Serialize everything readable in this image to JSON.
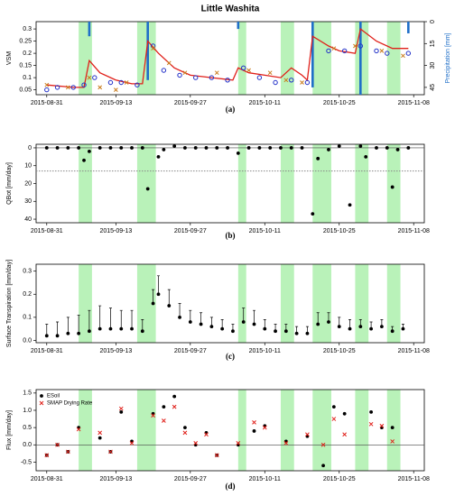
{
  "title": "Little Washita",
  "rain_periods": [
    [
      "2015-09-06",
      "2015-09-08"
    ],
    [
      "2015-09-17",
      "2015-09-20"
    ],
    [
      "2015-10-06",
      "2015-10-07"
    ],
    [
      "2015-10-14",
      "2015-10-16"
    ],
    [
      "2015-10-20",
      "2015-10-23"
    ],
    [
      "2015-10-28",
      "2015-10-30"
    ],
    [
      "2015-11-03",
      "2015-11-05"
    ]
  ],
  "chart_data": [
    {
      "type": "line",
      "caption": "(a)",
      "ylabel": "VSM",
      "y2label": "Precipitation [mm]",
      "xlim": [
        "2015-08-29",
        "2015-11-10"
      ],
      "xticks": [
        "2015-08-31",
        "2015-09-13",
        "2015-09-27",
        "2015-10-11",
        "2015-10-25",
        "2015-11-08"
      ],
      "ylim": [
        0.03,
        0.33
      ],
      "yticks": [
        0.05,
        0.1,
        0.15,
        0.2,
        0.25,
        0.3
      ],
      "y2lim": [
        0,
        50
      ],
      "y2ticks": [
        0,
        15,
        30,
        45
      ],
      "series": [
        {
          "kind": "bar",
          "axis": "y2",
          "color": "#1f6fc8",
          "x": [
            "2015-09-08",
            "2015-09-19",
            "2015-10-06",
            "2015-10-20",
            "2015-10-29",
            "2015-11-07"
          ],
          "values": [
            10,
            40,
            5,
            45,
            50,
            8
          ]
        },
        {
          "kind": "line",
          "color": "#e0201a",
          "x": [
            "2015-08-31",
            "2015-09-05",
            "2015-09-07",
            "2015-09-08",
            "2015-09-10",
            "2015-09-13",
            "2015-09-16",
            "2015-09-18",
            "2015-09-19",
            "2015-09-21",
            "2015-09-24",
            "2015-09-27",
            "2015-10-01",
            "2015-10-05",
            "2015-10-06",
            "2015-10-08",
            "2015-10-11",
            "2015-10-14",
            "2015-10-16",
            "2015-10-18",
            "2015-10-19",
            "2015-10-20",
            "2015-10-23",
            "2015-10-25",
            "2015-10-28",
            "2015-10-29",
            "2015-11-01",
            "2015-11-04",
            "2015-11-07"
          ],
          "values": [
            0.07,
            0.06,
            0.06,
            0.17,
            0.12,
            0.09,
            0.075,
            0.075,
            0.25,
            0.2,
            0.14,
            0.11,
            0.1,
            0.09,
            0.14,
            0.12,
            0.11,
            0.1,
            0.14,
            0.11,
            0.09,
            0.27,
            0.23,
            0.21,
            0.2,
            0.3,
            0.25,
            0.22,
            0.22
          ]
        },
        {
          "kind": "circle",
          "color": "#2230c8",
          "x": [
            "2015-08-31",
            "2015-09-02",
            "2015-09-05",
            "2015-09-07",
            "2015-09-09",
            "2015-09-12",
            "2015-09-14",
            "2015-09-17",
            "2015-09-20",
            "2015-09-22",
            "2015-09-25",
            "2015-09-28",
            "2015-10-01",
            "2015-10-04",
            "2015-10-07",
            "2015-10-10",
            "2015-10-13",
            "2015-10-16",
            "2015-10-19",
            "2015-10-23",
            "2015-10-26",
            "2015-10-29",
            "2015-11-01",
            "2015-11-03",
            "2015-11-07"
          ],
          "values": [
            0.05,
            0.06,
            0.06,
            0.07,
            0.1,
            0.08,
            0.08,
            0.07,
            0.23,
            0.13,
            0.11,
            0.1,
            0.1,
            0.09,
            0.14,
            0.1,
            0.08,
            0.09,
            0.08,
            0.21,
            0.21,
            0.23,
            0.21,
            0.2,
            0.2
          ]
        },
        {
          "kind": "cross",
          "color": "#c87a1a",
          "x": [
            "2015-08-31",
            "2015-09-04",
            "2015-09-08",
            "2015-09-10",
            "2015-09-13",
            "2015-09-15",
            "2015-09-20",
            "2015-09-23",
            "2015-09-26",
            "2015-10-02",
            "2015-10-08",
            "2015-10-12",
            "2015-10-15",
            "2015-10-18",
            "2015-10-24",
            "2015-10-28",
            "2015-11-02",
            "2015-11-06"
          ],
          "values": [
            0.07,
            0.06,
            0.1,
            0.06,
            0.05,
            0.08,
            0.22,
            0.16,
            0.12,
            0.12,
            0.13,
            0.12,
            0.09,
            0.08,
            0.22,
            0.23,
            0.21,
            0.19
          ]
        }
      ]
    },
    {
      "type": "scatter",
      "caption": "(b)",
      "ylabel": "QBot [mm/day]",
      "inverted": true,
      "reference_line": 13,
      "xlim": [
        "2015-08-29",
        "2015-11-10"
      ],
      "xticks": [
        "2015-08-31",
        "2015-09-13",
        "2015-09-27",
        "2015-10-11",
        "2015-10-25",
        "2015-11-08"
      ],
      "ylim": [
        -2,
        42
      ],
      "yticks": [
        0,
        10,
        20,
        30,
        40
      ],
      "series": [
        {
          "kind": "dot",
          "color": "#000000",
          "x": [
            "2015-08-31",
            "2015-09-02",
            "2015-09-04",
            "2015-09-06",
            "2015-09-07",
            "2015-09-08",
            "2015-09-10",
            "2015-09-12",
            "2015-09-14",
            "2015-09-16",
            "2015-09-18",
            "2015-09-19",
            "2015-09-21",
            "2015-09-22",
            "2015-09-24",
            "2015-09-26",
            "2015-09-28",
            "2015-09-30",
            "2015-10-02",
            "2015-10-04",
            "2015-10-06",
            "2015-10-08",
            "2015-10-10",
            "2015-10-12",
            "2015-10-14",
            "2015-10-16",
            "2015-10-18",
            "2015-10-20",
            "2015-10-21",
            "2015-10-23",
            "2015-10-25",
            "2015-10-27",
            "2015-10-29",
            "2015-10-30",
            "2015-11-01",
            "2015-11-03",
            "2015-11-04",
            "2015-11-05",
            "2015-11-07"
          ],
          "values": [
            0,
            0,
            0,
            0,
            7,
            2,
            0,
            0,
            0,
            0,
            0,
            23,
            5,
            1,
            -1,
            0,
            0,
            0,
            0,
            0,
            3,
            0,
            0,
            0,
            0,
            0,
            0,
            37,
            6,
            1,
            -1,
            32,
            -1,
            5,
            0,
            0,
            22,
            1,
            0
          ]
        }
      ]
    },
    {
      "type": "scatter",
      "caption": "(c)",
      "ylabel": "Surface Transpiration [mm/day]",
      "xlim": [
        "2015-08-29",
        "2015-11-10"
      ],
      "xticks": [
        "2015-08-31",
        "2015-09-13",
        "2015-09-27",
        "2015-10-11",
        "2015-10-25",
        "2015-11-08"
      ],
      "ylim": [
        -0.01,
        0.33
      ],
      "yticks": [
        {
          "value": 0,
          "label": "0.0"
        },
        0.1,
        0.2,
        0.3
      ],
      "series": [
        {
          "kind": "dot",
          "color": "#000000",
          "x": [
            "2015-08-31",
            "2015-09-02",
            "2015-09-04",
            "2015-09-06",
            "2015-09-08",
            "2015-09-10",
            "2015-09-12",
            "2015-09-14",
            "2015-09-16",
            "2015-09-18",
            "2015-09-20",
            "2015-09-21",
            "2015-09-23",
            "2015-09-25",
            "2015-09-27",
            "2015-09-29",
            "2015-10-01",
            "2015-10-03",
            "2015-10-05",
            "2015-10-07",
            "2015-10-09",
            "2015-10-11",
            "2015-10-13",
            "2015-10-15",
            "2015-10-17",
            "2015-10-19",
            "2015-10-21",
            "2015-10-23",
            "2015-10-25",
            "2015-10-27",
            "2015-10-29",
            "2015-10-31",
            "2015-11-02",
            "2015-11-04",
            "2015-11-06"
          ],
          "values": [
            0.02,
            0.02,
            0.03,
            0.03,
            0.04,
            0.05,
            0.05,
            0.05,
            0.05,
            0.04,
            0.16,
            0.2,
            0.15,
            0.1,
            0.08,
            0.07,
            0.06,
            0.05,
            0.04,
            0.08,
            0.07,
            0.05,
            0.04,
            0.04,
            0.03,
            0.03,
            0.07,
            0.08,
            0.06,
            0.05,
            0.06,
            0.05,
            0.06,
            0.04,
            0.05
          ],
          "errors": [
            0.05,
            0.06,
            0.07,
            0.08,
            0.09,
            0.1,
            0.09,
            0.08,
            0.08,
            0.05,
            0.06,
            0.08,
            0.07,
            0.06,
            0.05,
            0.05,
            0.04,
            0.04,
            0.03,
            0.06,
            0.06,
            0.04,
            0.03,
            0.03,
            0.03,
            0.03,
            0.05,
            0.04,
            0.04,
            0.04,
            0.03,
            0.03,
            0.03,
            0.02,
            0.02
          ]
        }
      ]
    },
    {
      "type": "scatter",
      "caption": "(d)",
      "ylabel": "Flux [mm/day]",
      "zero_line": true,
      "legend": "upper left",
      "xlim": [
        "2015-08-29",
        "2015-11-10"
      ],
      "xticks": [
        "2015-08-31",
        "2015-09-13",
        "2015-09-27",
        "2015-10-11",
        "2015-10-25",
        "2015-11-08"
      ],
      "ylim": [
        -0.75,
        1.6
      ],
      "yticks": [
        -0.5,
        {
          "value": 0,
          "label": "0.0"
        },
        0.5,
        {
          "value": 1,
          "label": "1.0"
        },
        1.5
      ],
      "series": [
        {
          "name": "ESoil",
          "kind": "dot",
          "color": "#000000",
          "x": [
            "2015-08-31",
            "2015-09-02",
            "2015-09-04",
            "2015-09-06",
            "2015-09-10",
            "2015-09-12",
            "2015-09-14",
            "2015-09-16",
            "2015-09-20",
            "2015-09-22",
            "2015-09-24",
            "2015-09-26",
            "2015-09-28",
            "2015-09-30",
            "2015-10-02",
            "2015-10-06",
            "2015-10-09",
            "2015-10-11",
            "2015-10-15",
            "2015-10-19",
            "2015-10-22",
            "2015-10-24",
            "2015-10-26",
            "2015-10-31",
            "2015-11-02",
            "2015-11-04"
          ],
          "values": [
            -0.3,
            0,
            -0.2,
            0.5,
            0.2,
            -0.2,
            0.95,
            0.1,
            0.9,
            1.1,
            1.4,
            0.5,
            0,
            0.35,
            -0.3,
            0,
            0.4,
            0.55,
            0.1,
            0.25,
            -0.6,
            1.1,
            0.9,
            0.95,
            0.5,
            0.5
          ]
        },
        {
          "name": "SMAP Drying Rate",
          "kind": "cross",
          "color": "#e0201a",
          "x": [
            "2015-08-31",
            "2015-09-02",
            "2015-09-04",
            "2015-09-06",
            "2015-09-10",
            "2015-09-12",
            "2015-09-14",
            "2015-09-16",
            "2015-09-20",
            "2015-09-22",
            "2015-09-24",
            "2015-09-26",
            "2015-09-28",
            "2015-09-30",
            "2015-10-02",
            "2015-10-06",
            "2015-10-09",
            "2015-10-11",
            "2015-10-15",
            "2015-10-19",
            "2015-10-22",
            "2015-10-24",
            "2015-10-26",
            "2015-10-31",
            "2015-11-02",
            "2015-11-04"
          ],
          "values": [
            -0.3,
            0,
            -0.2,
            0.45,
            0.35,
            -0.2,
            1.05,
            0.05,
            0.85,
            0.7,
            1.1,
            0.35,
            0.05,
            0.3,
            -0.3,
            0.05,
            0.65,
            0.5,
            0.05,
            0.3,
            0,
            0.75,
            0.3,
            0.6,
            0.55,
            0.1
          ]
        }
      ]
    }
  ]
}
